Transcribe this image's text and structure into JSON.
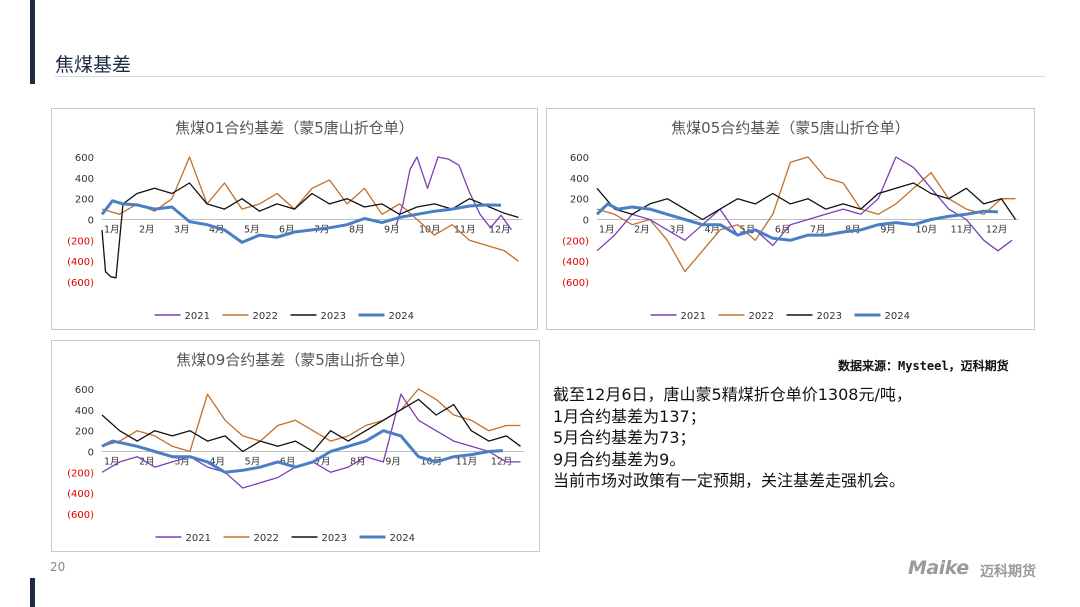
{
  "page_title": "焦煤基差",
  "page_number": "20",
  "source": "数据来源：Mysteel，迈科期货",
  "summary": [
    "截至12月6日，唐山蒙5精煤折仓单价1308元/吨，",
    "1月合约基差为137；",
    "5月合约基差为73；",
    "9月合约基差为9。",
    "当前市场对政策有一定预期，关注基差走强机会。"
  ],
  "logo": {
    "brand": "Maike",
    "cn": "迈科期货"
  },
  "colors": {
    "s2021": "#7b3fb5",
    "s2022": "#c0702a",
    "s2023": "#111111",
    "s2024": "#4a7fc4",
    "neg_tick": "#e00000"
  },
  "chart_data": [
    {
      "type": "line",
      "title": "焦煤01合约基差（蒙5唐山折仓单）",
      "ylim": [
        -600,
        600
      ],
      "yticks": [
        "600",
        "400",
        "200",
        "0",
        "(200)",
        "(400)",
        "(600)"
      ],
      "ytick_values": [
        600,
        400,
        200,
        0,
        -200,
        -400,
        -600
      ],
      "xticks": [
        "1月",
        "2月",
        "3月",
        "4月",
        "5月",
        "6月",
        "7月",
        "8月",
        "9月",
        "10月",
        "11月",
        "12月"
      ],
      "x_month_domain": [
        1,
        13
      ],
      "legend": "bottom",
      "series": [
        {
          "name": "2021",
          "x": [
            9.4,
            9.6,
            9.8,
            10.0,
            10.3,
            10.6,
            10.9,
            11.2,
            11.5,
            11.8,
            12.1,
            12.4,
            12.7
          ],
          "values": [
            -60,
            150,
            480,
            650,
            300,
            620,
            580,
            520,
            260,
            50,
            -80,
            40,
            -100
          ]
        },
        {
          "name": "2022",
          "x": [
            1.0,
            1.5,
            2.0,
            2.5,
            3.0,
            3.5,
            4.0,
            4.5,
            5.0,
            5.5,
            6.0,
            6.5,
            7.0,
            7.5,
            8.0,
            8.5,
            9.0,
            9.5,
            10.0,
            10.5,
            11.0,
            11.5,
            12.0,
            12.5,
            12.9
          ],
          "values": [
            100,
            50,
            150,
            80,
            200,
            620,
            150,
            350,
            100,
            150,
            250,
            100,
            300,
            380,
            150,
            300,
            50,
            150,
            0,
            -150,
            -50,
            -200,
            -250,
            -300,
            -400
          ]
        },
        {
          "name": "2023",
          "x": [
            1.0,
            1.1,
            1.25,
            1.4,
            1.6,
            2.0,
            2.5,
            3.0,
            3.5,
            4.0,
            4.5,
            5.0,
            5.5,
            6.0,
            6.5,
            7.0,
            7.5,
            8.0,
            8.5,
            9.0,
            9.5,
            10.0,
            10.5,
            11.0,
            11.5,
            12.0,
            12.5,
            12.9
          ],
          "values": [
            -100,
            -500,
            -550,
            -560,
            150,
            250,
            300,
            250,
            350,
            150,
            100,
            200,
            80,
            150,
            100,
            250,
            150,
            200,
            120,
            150,
            50,
            120,
            150,
            100,
            200,
            130,
            60,
            20
          ]
        },
        {
          "name": "2024",
          "x": [
            1.0,
            1.3,
            1.6,
            2.0,
            2.5,
            3.0,
            3.5,
            4.0,
            4.5,
            5.0,
            5.5,
            6.0,
            6.5,
            7.0,
            7.5,
            8.0,
            8.5,
            9.0,
            9.5,
            10.0,
            10.5,
            11.0,
            11.5,
            12.0,
            12.4
          ],
          "values": [
            50,
            180,
            150,
            140,
            100,
            120,
            -20,
            -50,
            -100,
            -220,
            -150,
            -170,
            -120,
            -100,
            -80,
            -50,
            10,
            -30,
            20,
            50,
            80,
            100,
            130,
            140,
            137
          ]
        }
      ]
    },
    {
      "type": "line",
      "title": "焦煤05合约基差（蒙5唐山折仓单）",
      "ylim": [
        -600,
        600
      ],
      "yticks": [
        "600",
        "400",
        "200",
        "0",
        "(200)",
        "(400)",
        "(600)"
      ],
      "ytick_values": [
        600,
        400,
        200,
        0,
        -200,
        -400,
        -600
      ],
      "xticks": [
        "1月",
        "2月",
        "3月",
        "4月",
        "5月",
        "6月",
        "7月",
        "8月",
        "9月",
        "10月",
        "11月",
        "12月"
      ],
      "x_month_domain": [
        1,
        13
      ],
      "legend": "bottom",
      "series": [
        {
          "name": "2021",
          "x": [
            1.0,
            1.5,
            2.0,
            2.5,
            3.0,
            3.5,
            4.0,
            4.5,
            5.0,
            5.5,
            6.0,
            6.5,
            7.0,
            7.5,
            8.0,
            8.5,
            9.0,
            9.5,
            10.0,
            10.5,
            11.0,
            11.5,
            12.0,
            12.4,
            12.8
          ],
          "values": [
            -300,
            -150,
            50,
            0,
            -100,
            -200,
            -50,
            100,
            -150,
            -100,
            -250,
            -50,
            0,
            50,
            100,
            50,
            200,
            600,
            500,
            300,
            100,
            0,
            -200,
            -300,
            -200
          ]
        },
        {
          "name": "2022",
          "x": [
            1.0,
            1.5,
            2.0,
            2.5,
            3.0,
            3.5,
            4.0,
            4.5,
            5.0,
            5.5,
            6.0,
            6.5,
            7.0,
            7.5,
            8.0,
            8.5,
            9.0,
            9.5,
            10.0,
            10.5,
            11.0,
            11.5,
            12.0,
            12.5,
            12.9
          ],
          "values": [
            100,
            50,
            -50,
            0,
            -200,
            -500,
            -300,
            -100,
            -50,
            -200,
            50,
            550,
            650,
            400,
            350,
            100,
            50,
            150,
            300,
            450,
            200,
            100,
            50,
            200,
            200
          ]
        },
        {
          "name": "2023",
          "x": [
            1.0,
            1.5,
            2.0,
            2.5,
            3.0,
            3.5,
            4.0,
            4.5,
            5.0,
            5.5,
            6.0,
            6.5,
            7.0,
            7.5,
            8.0,
            8.5,
            9.0,
            9.5,
            10.0,
            10.5,
            11.0,
            11.5,
            12.0,
            12.5,
            12.9
          ],
          "values": [
            300,
            100,
            50,
            150,
            200,
            100,
            0,
            100,
            200,
            150,
            250,
            150,
            200,
            100,
            150,
            100,
            250,
            300,
            350,
            250,
            200,
            300,
            150,
            200,
            0
          ]
        },
        {
          "name": "2024",
          "x": [
            1.0,
            1.3,
            1.6,
            2.0,
            2.5,
            3.0,
            3.5,
            4.0,
            4.5,
            5.0,
            5.5,
            6.0,
            6.5,
            7.0,
            7.5,
            8.0,
            8.5,
            9.0,
            9.5,
            10.0,
            10.5,
            11.0,
            11.5,
            12.0,
            12.4
          ],
          "values": [
            50,
            150,
            100,
            120,
            100,
            50,
            0,
            -50,
            -50,
            -150,
            -100,
            -180,
            -200,
            -150,
            -150,
            -120,
            -100,
            -50,
            -30,
            -50,
            0,
            30,
            50,
            80,
            73
          ]
        }
      ]
    },
    {
      "type": "line",
      "title": "焦煤09合约基差（蒙5唐山折仓单）",
      "ylim": [
        -600,
        600
      ],
      "yticks": [
        "600",
        "400",
        "200",
        "0",
        "(200)",
        "(400)",
        "(600)"
      ],
      "ytick_values": [
        600,
        400,
        200,
        0,
        -200,
        -400,
        -600
      ],
      "xticks": [
        "1月",
        "2月",
        "3月",
        "4月",
        "5月",
        "6月",
        "7月",
        "8月",
        "9月",
        "10月",
        "11月",
        "12月"
      ],
      "x_month_domain": [
        1,
        13
      ],
      "legend": "bottom",
      "series": [
        {
          "name": "2021",
          "x": [
            1.0,
            1.5,
            2.0,
            2.5,
            3.0,
            3.5,
            4.0,
            4.5,
            5.0,
            5.5,
            6.0,
            6.5,
            7.0,
            7.5,
            8.0,
            8.5,
            9.0,
            9.5,
            10.0,
            10.5,
            11.0,
            11.5,
            12.0,
            12.5,
            12.9
          ],
          "values": [
            -200,
            -100,
            -50,
            -150,
            -100,
            -50,
            -150,
            -200,
            -350,
            -300,
            -250,
            -150,
            -100,
            -200,
            -150,
            -50,
            -100,
            550,
            300,
            200,
            100,
            50,
            0,
            -100,
            -100
          ]
        },
        {
          "name": "2022",
          "x": [
            1.0,
            1.5,
            2.0,
            2.5,
            3.0,
            3.5,
            4.0,
            4.5,
            5.0,
            5.5,
            6.0,
            6.5,
            7.0,
            7.5,
            8.0,
            8.5,
            9.0,
            9.5,
            10.0,
            10.5,
            11.0,
            11.5,
            12.0,
            12.5,
            12.9
          ],
          "values": [
            50,
            100,
            200,
            150,
            50,
            0,
            550,
            300,
            150,
            100,
            250,
            300,
            200,
            100,
            150,
            250,
            300,
            400,
            600,
            500,
            350,
            300,
            200,
            250,
            250
          ]
        },
        {
          "name": "2023",
          "x": [
            1.0,
            1.5,
            2.0,
            2.5,
            3.0,
            3.5,
            4.0,
            4.5,
            5.0,
            5.5,
            6.0,
            6.5,
            7.0,
            7.5,
            8.0,
            8.5,
            9.0,
            9.5,
            10.0,
            10.5,
            11.0,
            11.5,
            12.0,
            12.5,
            12.9
          ],
          "values": [
            350,
            200,
            100,
            200,
            150,
            200,
            100,
            150,
            0,
            100,
            50,
            100,
            0,
            200,
            100,
            200,
            300,
            400,
            500,
            350,
            450,
            200,
            100,
            150,
            50
          ]
        },
        {
          "name": "2024",
          "x": [
            1.0,
            1.3,
            1.6,
            2.0,
            2.5,
            3.0,
            3.5,
            4.0,
            4.5,
            5.0,
            5.5,
            6.0,
            6.5,
            7.0,
            7.5,
            8.0,
            8.5,
            9.0,
            9.5,
            10.0,
            10.5,
            11.0,
            11.5,
            12.0,
            12.4
          ],
          "values": [
            50,
            100,
            80,
            50,
            0,
            -50,
            -50,
            -100,
            -200,
            -180,
            -150,
            -100,
            -150,
            -100,
            0,
            50,
            100,
            200,
            150,
            -50,
            -100,
            -50,
            -30,
            0,
            9
          ]
        }
      ]
    }
  ]
}
